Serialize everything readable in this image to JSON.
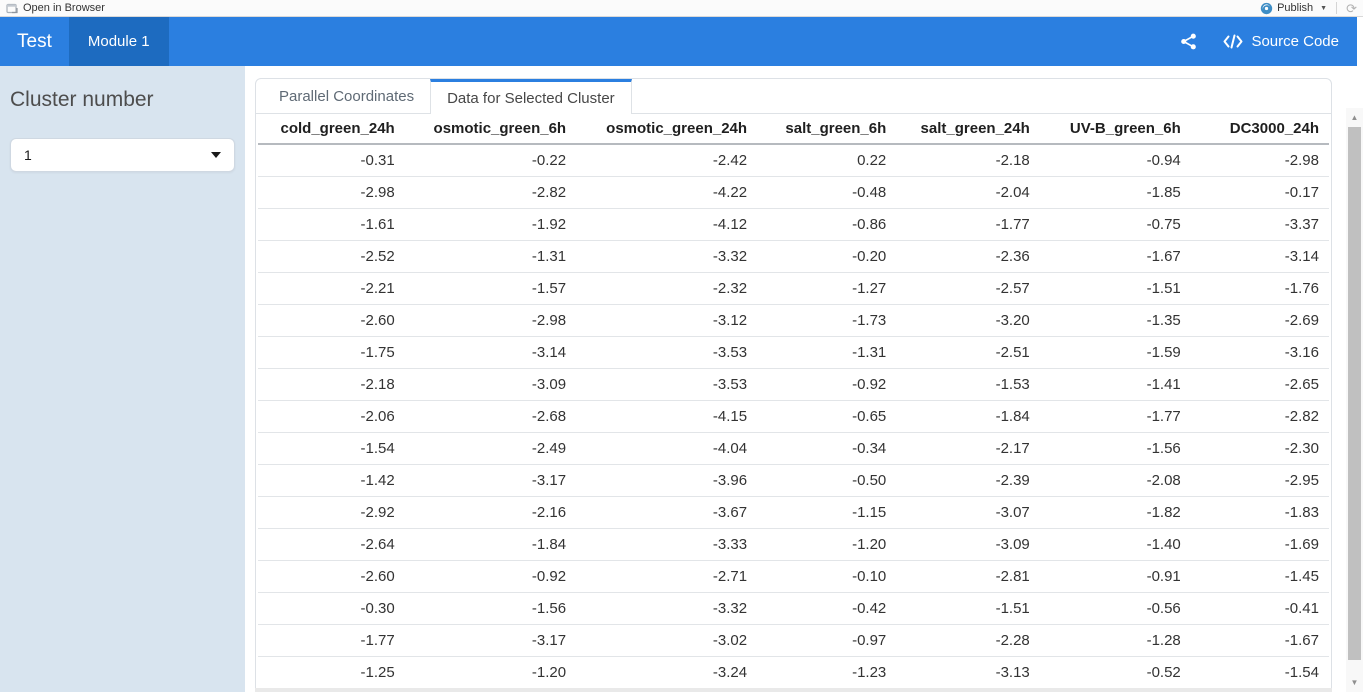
{
  "colors": {
    "navbar_bg": "#2b7fe0",
    "navbar_active_tab_bg": "#1d6bc0",
    "sidebar_bg": "#d8e4ef",
    "accent_blue": "#2b7fe0",
    "publish_icon_blue": "#3e8dc5"
  },
  "viewer_toolbar": {
    "open_in_browser_label": "Open in Browser",
    "publish_label": "Publish"
  },
  "navbar": {
    "brand": "Test",
    "active_tab": "Module 1",
    "source_code_label": "Source Code"
  },
  "sidebar": {
    "cluster_label": "Cluster number",
    "cluster_value": "1"
  },
  "tabs": [
    {
      "label": "Parallel Coordinates",
      "active": false
    },
    {
      "label": "Data for Selected Cluster",
      "active": true
    }
  ],
  "table": {
    "columns": [
      "cold_green_24h",
      "osmotic_green_6h",
      "osmotic_green_24h",
      "salt_green_6h",
      "salt_green_24h",
      "UV-B_green_6h",
      "DC3000_24h"
    ],
    "rows": [
      [
        "-0.31",
        "-0.22",
        "-2.42",
        "0.22",
        "-2.18",
        "-0.94",
        "-2.98"
      ],
      [
        "-2.98",
        "-2.82",
        "-4.22",
        "-0.48",
        "-2.04",
        "-1.85",
        "-0.17"
      ],
      [
        "-1.61",
        "-1.92",
        "-4.12",
        "-0.86",
        "-1.77",
        "-0.75",
        "-3.37"
      ],
      [
        "-2.52",
        "-1.31",
        "-3.32",
        "-0.20",
        "-2.36",
        "-1.67",
        "-3.14"
      ],
      [
        "-2.21",
        "-1.57",
        "-2.32",
        "-1.27",
        "-2.57",
        "-1.51",
        "-1.76"
      ],
      [
        "-2.60",
        "-2.98",
        "-3.12",
        "-1.73",
        "-3.20",
        "-1.35",
        "-2.69"
      ],
      [
        "-1.75",
        "-3.14",
        "-3.53",
        "-1.31",
        "-2.51",
        "-1.59",
        "-3.16"
      ],
      [
        "-2.18",
        "-3.09",
        "-3.53",
        "-0.92",
        "-1.53",
        "-1.41",
        "-2.65"
      ],
      [
        "-2.06",
        "-2.68",
        "-4.15",
        "-0.65",
        "-1.84",
        "-1.77",
        "-2.82"
      ],
      [
        "-1.54",
        "-2.49",
        "-4.04",
        "-0.34",
        "-2.17",
        "-1.56",
        "-2.30"
      ],
      [
        "-1.42",
        "-3.17",
        "-3.96",
        "-0.50",
        "-2.39",
        "-2.08",
        "-2.95"
      ],
      [
        "-2.92",
        "-2.16",
        "-3.67",
        "-1.15",
        "-3.07",
        "-1.82",
        "-1.83"
      ],
      [
        "-2.64",
        "-1.84",
        "-3.33",
        "-1.20",
        "-3.09",
        "-1.40",
        "-1.69"
      ],
      [
        "-2.60",
        "-0.92",
        "-2.71",
        "-0.10",
        "-2.81",
        "-0.91",
        "-1.45"
      ],
      [
        "-0.30",
        "-1.56",
        "-3.32",
        "-0.42",
        "-1.51",
        "-0.56",
        "-0.41"
      ],
      [
        "-1.77",
        "-3.17",
        "-3.02",
        "-0.97",
        "-2.28",
        "-1.28",
        "-1.67"
      ],
      [
        "-1.25",
        "-1.20",
        "-3.24",
        "-1.23",
        "-3.13",
        "-0.52",
        "-1.54"
      ]
    ]
  }
}
